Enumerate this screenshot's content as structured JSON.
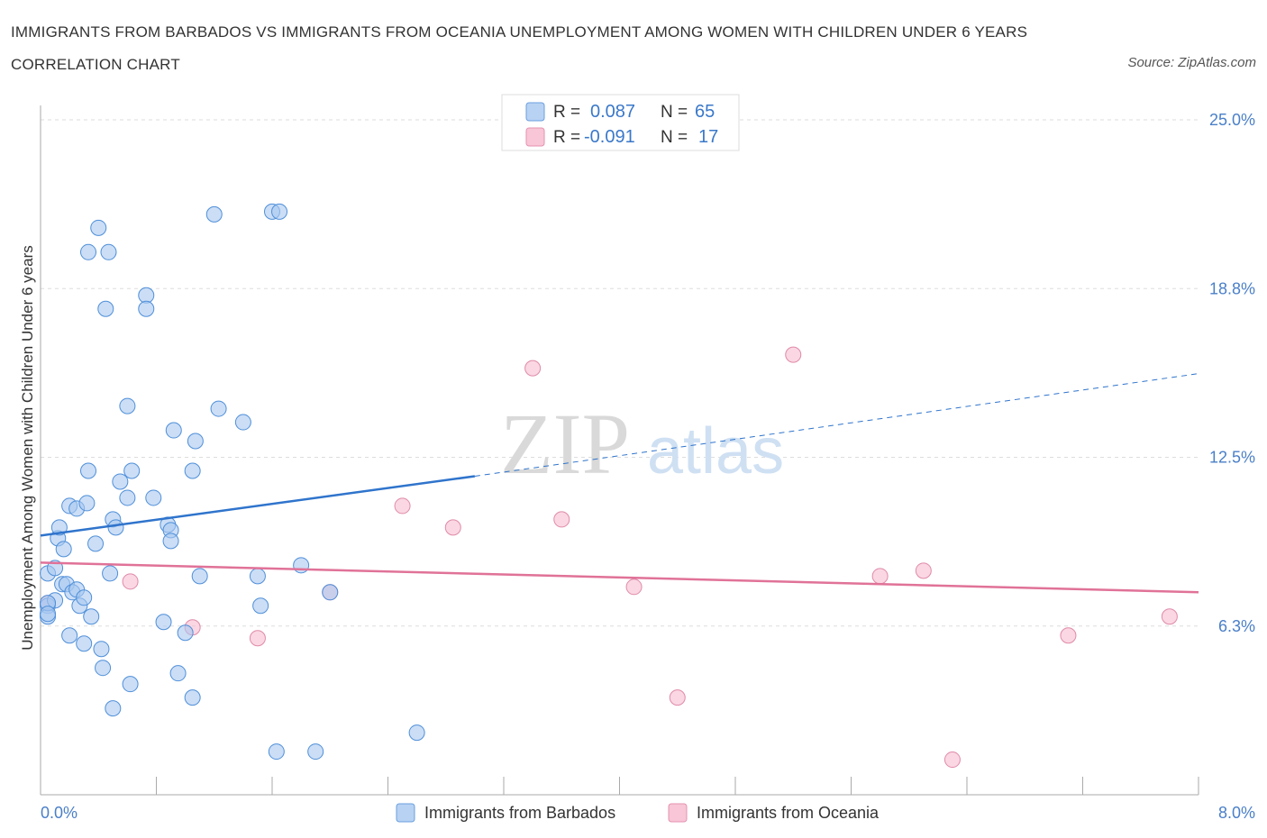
{
  "title": "IMMIGRANTS FROM BARBADOS VS IMMIGRANTS FROM OCEANIA UNEMPLOYMENT AMONG WOMEN WITH CHILDREN UNDER 6 YEARS CORRELATION CHART",
  "source": "Source: ZipAtlas.com",
  "watermark": {
    "zip": "ZIP",
    "atlas": "atlas"
  },
  "legend": {
    "rows": [
      {
        "r_label": "R =",
        "r_value": "0.087",
        "n_label": "N =",
        "n_value": "65"
      },
      {
        "r_label": "R =",
        "r_value": "-0.091",
        "n_label": "N =",
        "n_value": "17"
      }
    ]
  },
  "chart_data": {
    "type": "scatter",
    "title": "IMMIGRANTS FROM BARBADOS VS IMMIGRANTS FROM OCEANIA UNEMPLOYMENT AMONG WOMEN WITH CHILDREN UNDER 6 YEARS CORRELATION CHART",
    "xlabel": "",
    "ylabel": "Unemployment Among Women with Children Under 6 years",
    "xlim": [
      0,
      8
    ],
    "ylim": [
      0,
      25
    ],
    "x_tick_labels": [
      "0.0%",
      "8.0%"
    ],
    "y_tick_labels": [
      "6.3%",
      "12.5%",
      "18.8%",
      "25.0%"
    ],
    "y_ticks": [
      6.25,
      12.5,
      18.75,
      25.0
    ],
    "grid": true,
    "legend_position": "top-center",
    "colors": {
      "barbados_fill": "#a9c8f0",
      "barbados_stroke": "#4f8fd9",
      "barbados_line": "#2f74cc",
      "oceania_fill": "#f6bdd0",
      "oceania_stroke": "#e08aa9",
      "oceania_line": "#e07298",
      "grid": "#dddddd",
      "tick_text": "#4a7fc8"
    },
    "series": [
      {
        "name": "Immigrants from Barbados",
        "r": 0.087,
        "n": 65,
        "trend": {
          "x": [
            0,
            3.0
          ],
          "y": [
            9.6,
            11.8
          ],
          "dashed_x": [
            3.0,
            8.0
          ],
          "dashed_y": [
            11.8,
            15.6
          ]
        },
        "points": [
          [
            0.05,
            8.2
          ],
          [
            0.05,
            7.0
          ],
          [
            0.05,
            6.6
          ],
          [
            0.1,
            7.2
          ],
          [
            0.1,
            8.4
          ],
          [
            0.12,
            9.5
          ],
          [
            0.13,
            9.9
          ],
          [
            0.15,
            7.8
          ],
          [
            0.16,
            9.1
          ],
          [
            0.18,
            7.8
          ],
          [
            0.2,
            5.9
          ],
          [
            0.2,
            10.7
          ],
          [
            0.22,
            7.5
          ],
          [
            0.25,
            7.6
          ],
          [
            0.25,
            10.6
          ],
          [
            0.27,
            7.0
          ],
          [
            0.3,
            7.3
          ],
          [
            0.3,
            5.6
          ],
          [
            0.32,
            10.8
          ],
          [
            0.33,
            12.0
          ],
          [
            0.33,
            20.1
          ],
          [
            0.35,
            6.6
          ],
          [
            0.38,
            9.3
          ],
          [
            0.4,
            21.0
          ],
          [
            0.42,
            5.4
          ],
          [
            0.43,
            4.7
          ],
          [
            0.45,
            18.0
          ],
          [
            0.47,
            20.1
          ],
          [
            0.48,
            8.2
          ],
          [
            0.5,
            3.2
          ],
          [
            0.5,
            10.2
          ],
          [
            0.52,
            9.9
          ],
          [
            0.55,
            11.6
          ],
          [
            0.6,
            11.0
          ],
          [
            0.6,
            14.4
          ],
          [
            0.62,
            4.1
          ],
          [
            0.63,
            12.0
          ],
          [
            0.73,
            18.5
          ],
          [
            0.73,
            18.0
          ],
          [
            0.78,
            11.0
          ],
          [
            0.85,
            6.4
          ],
          [
            0.88,
            10.0
          ],
          [
            0.9,
            9.8
          ],
          [
            0.9,
            9.4
          ],
          [
            0.92,
            13.5
          ],
          [
            0.95,
            4.5
          ],
          [
            1.0,
            6.0
          ],
          [
            1.05,
            3.6
          ],
          [
            1.05,
            12.0
          ],
          [
            1.07,
            13.1
          ],
          [
            1.1,
            8.1
          ],
          [
            1.2,
            21.5
          ],
          [
            1.23,
            14.3
          ],
          [
            1.4,
            13.8
          ],
          [
            1.5,
            8.1
          ],
          [
            1.52,
            7.0
          ],
          [
            1.6,
            21.6
          ],
          [
            1.63,
            1.6
          ],
          [
            1.65,
            21.6
          ],
          [
            1.8,
            8.5
          ],
          [
            1.9,
            1.6
          ],
          [
            2.0,
            7.5
          ],
          [
            2.6,
            2.3
          ],
          [
            0.05,
            7.1
          ],
          [
            0.05,
            6.7
          ]
        ]
      },
      {
        "name": "Immigrants from Oceania",
        "r": -0.091,
        "n": 17,
        "trend": {
          "x": [
            0,
            8.0
          ],
          "y": [
            8.6,
            7.5
          ]
        },
        "points": [
          [
            0.05,
            7.1
          ],
          [
            0.62,
            7.9
          ],
          [
            1.05,
            6.2
          ],
          [
            1.5,
            5.8
          ],
          [
            2.0,
            7.5
          ],
          [
            2.5,
            10.7
          ],
          [
            2.85,
            9.9
          ],
          [
            3.4,
            15.8
          ],
          [
            3.6,
            10.2
          ],
          [
            4.1,
            7.7
          ],
          [
            4.4,
            3.6
          ],
          [
            5.2,
            16.3
          ],
          [
            5.8,
            8.1
          ],
          [
            6.1,
            8.3
          ],
          [
            6.3,
            1.3
          ],
          [
            7.1,
            5.9
          ],
          [
            7.8,
            6.6
          ]
        ]
      }
    ]
  }
}
